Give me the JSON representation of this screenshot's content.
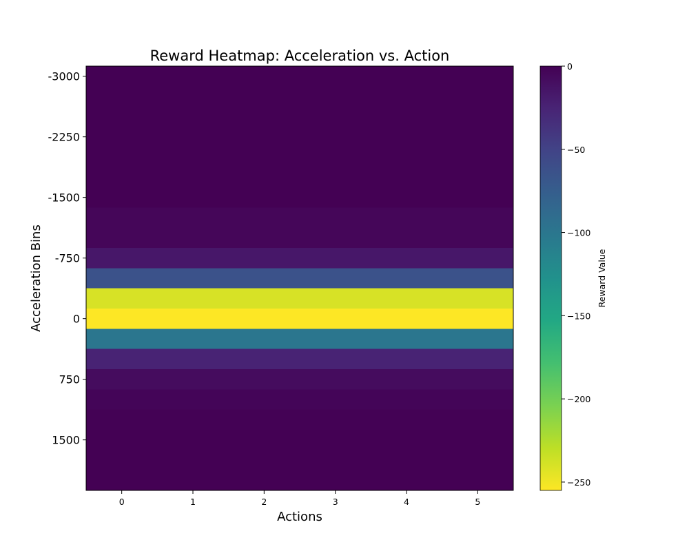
{
  "chart_data": {
    "type": "heatmap",
    "title": "Reward Heatmap: Acceleration vs. Action",
    "xlabel": "Actions",
    "ylabel": "Acceleration Bins",
    "colorbar_label": "Reward Value",
    "colormap": "viridis",
    "colormap_reversed": true,
    "vmin": -255,
    "vmax": 0,
    "x_categories": [
      0,
      1,
      2,
      3,
      4,
      5
    ],
    "x_ticks": [
      "0",
      "1",
      "2",
      "3",
      "4",
      "5"
    ],
    "y_ticks": [
      {
        "value": -3000,
        "label": "-3000"
      },
      {
        "value": -2250,
        "label": "-2250"
      },
      {
        "value": -1500,
        "label": "-1500"
      },
      {
        "value": -750,
        "label": "-750"
      },
      {
        "value": 0,
        "label": "0"
      },
      {
        "value": 750,
        "label": "750"
      },
      {
        "value": 1500,
        "label": "1500"
      }
    ],
    "ylim": [
      -3125,
      2125
    ],
    "bin_width": 250,
    "colorbar_ticks": [
      {
        "value": 0,
        "label": "0"
      },
      {
        "value": -50,
        "label": "−50"
      },
      {
        "value": -100,
        "label": "−100"
      },
      {
        "value": -150,
        "label": "−150"
      },
      {
        "value": -200,
        "label": "−200"
      },
      {
        "value": -250,
        "label": "−250"
      }
    ],
    "rows": [
      {
        "acceleration": -3000,
        "values": [
          0,
          0,
          0,
          0,
          0,
          0
        ]
      },
      {
        "acceleration": -2750,
        "values": [
          0,
          0,
          0,
          0,
          0,
          0
        ]
      },
      {
        "acceleration": -2500,
        "values": [
          0,
          0,
          0,
          0,
          0,
          0
        ]
      },
      {
        "acceleration": -2250,
        "values": [
          0,
          0,
          0,
          0,
          0,
          0
        ]
      },
      {
        "acceleration": -2000,
        "values": [
          0,
          0,
          0,
          0,
          0,
          0
        ]
      },
      {
        "acceleration": -1750,
        "values": [
          0,
          0,
          0,
          0,
          0,
          0
        ]
      },
      {
        "acceleration": -1500,
        "values": [
          0,
          0,
          0,
          0,
          0,
          0
        ]
      },
      {
        "acceleration": -1250,
        "values": [
          -4,
          -4,
          -4,
          -4,
          -4,
          -4
        ]
      },
      {
        "acceleration": -1000,
        "values": [
          -4,
          -4,
          -4,
          -4,
          -4,
          -4
        ]
      },
      {
        "acceleration": -750,
        "values": [
          -16,
          -16,
          -16,
          -16,
          -16,
          -16
        ]
      },
      {
        "acceleration": -500,
        "values": [
          -64,
          -64,
          -64,
          -64,
          -64,
          -64
        ]
      },
      {
        "acceleration": -250,
        "values": [
          -240,
          -240,
          -240,
          -240,
          -240,
          -240
        ]
      },
      {
        "acceleration": 0,
        "values": [
          -255,
          -255,
          -255,
          -255,
          -255,
          -255
        ]
      },
      {
        "acceleration": 250,
        "values": [
          -100,
          -100,
          -100,
          -100,
          -100,
          -100
        ]
      },
      {
        "acceleration": 500,
        "values": [
          -25,
          -25,
          -25,
          -25,
          -25,
          -25
        ]
      },
      {
        "acceleration": 750,
        "values": [
          -8,
          -8,
          -8,
          -8,
          -8,
          -8
        ]
      },
      {
        "acceleration": 1000,
        "values": [
          -3,
          -3,
          -3,
          -3,
          -3,
          -3
        ]
      },
      {
        "acceleration": 1250,
        "values": [
          -1,
          -1,
          -1,
          -1,
          -1,
          -1
        ]
      },
      {
        "acceleration": 1500,
        "values": [
          0,
          0,
          0,
          0,
          0,
          0
        ]
      },
      {
        "acceleration": 1750,
        "values": [
          0,
          0,
          0,
          0,
          0,
          0
        ]
      },
      {
        "acceleration": 2000,
        "values": [
          0,
          0,
          0,
          0,
          0,
          0
        ]
      }
    ]
  }
}
